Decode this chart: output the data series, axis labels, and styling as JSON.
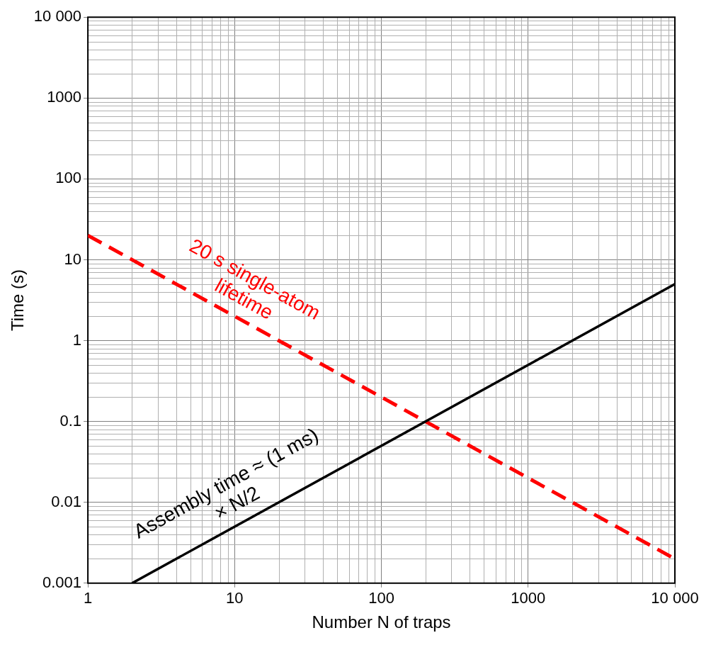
{
  "chart_data": {
    "type": "line",
    "xlabel": "Number N of traps",
    "ylabel": "Time (s)",
    "log": "xy",
    "grid": true,
    "legend": false,
    "marker": "none",
    "xlim": [
      1,
      10000
    ],
    "ylim": [
      0.001,
      10000
    ],
    "xticks": [
      1,
      10,
      100,
      1000,
      {
        "value": 10000,
        "label": "10 000"
      }
    ],
    "yticks": [
      0.001,
      0.01,
      0.1,
      1,
      10,
      100,
      1000,
      {
        "value": 10000,
        "label": "10 000"
      }
    ],
    "series": [
      {
        "name": "Assembly time ≈ (1 ms) × N/2",
        "color": "#000000",
        "x": [
          2,
          10000
        ],
        "values": [
          0.001,
          5
        ],
        "line_style": "solid"
      },
      {
        "name": "20 s single-atom lifetime",
        "color": "#ff0000",
        "x": [
          1,
          10000
        ],
        "values": [
          20,
          0.002
        ],
        "line_style": "dashed"
      }
    ]
  }
}
